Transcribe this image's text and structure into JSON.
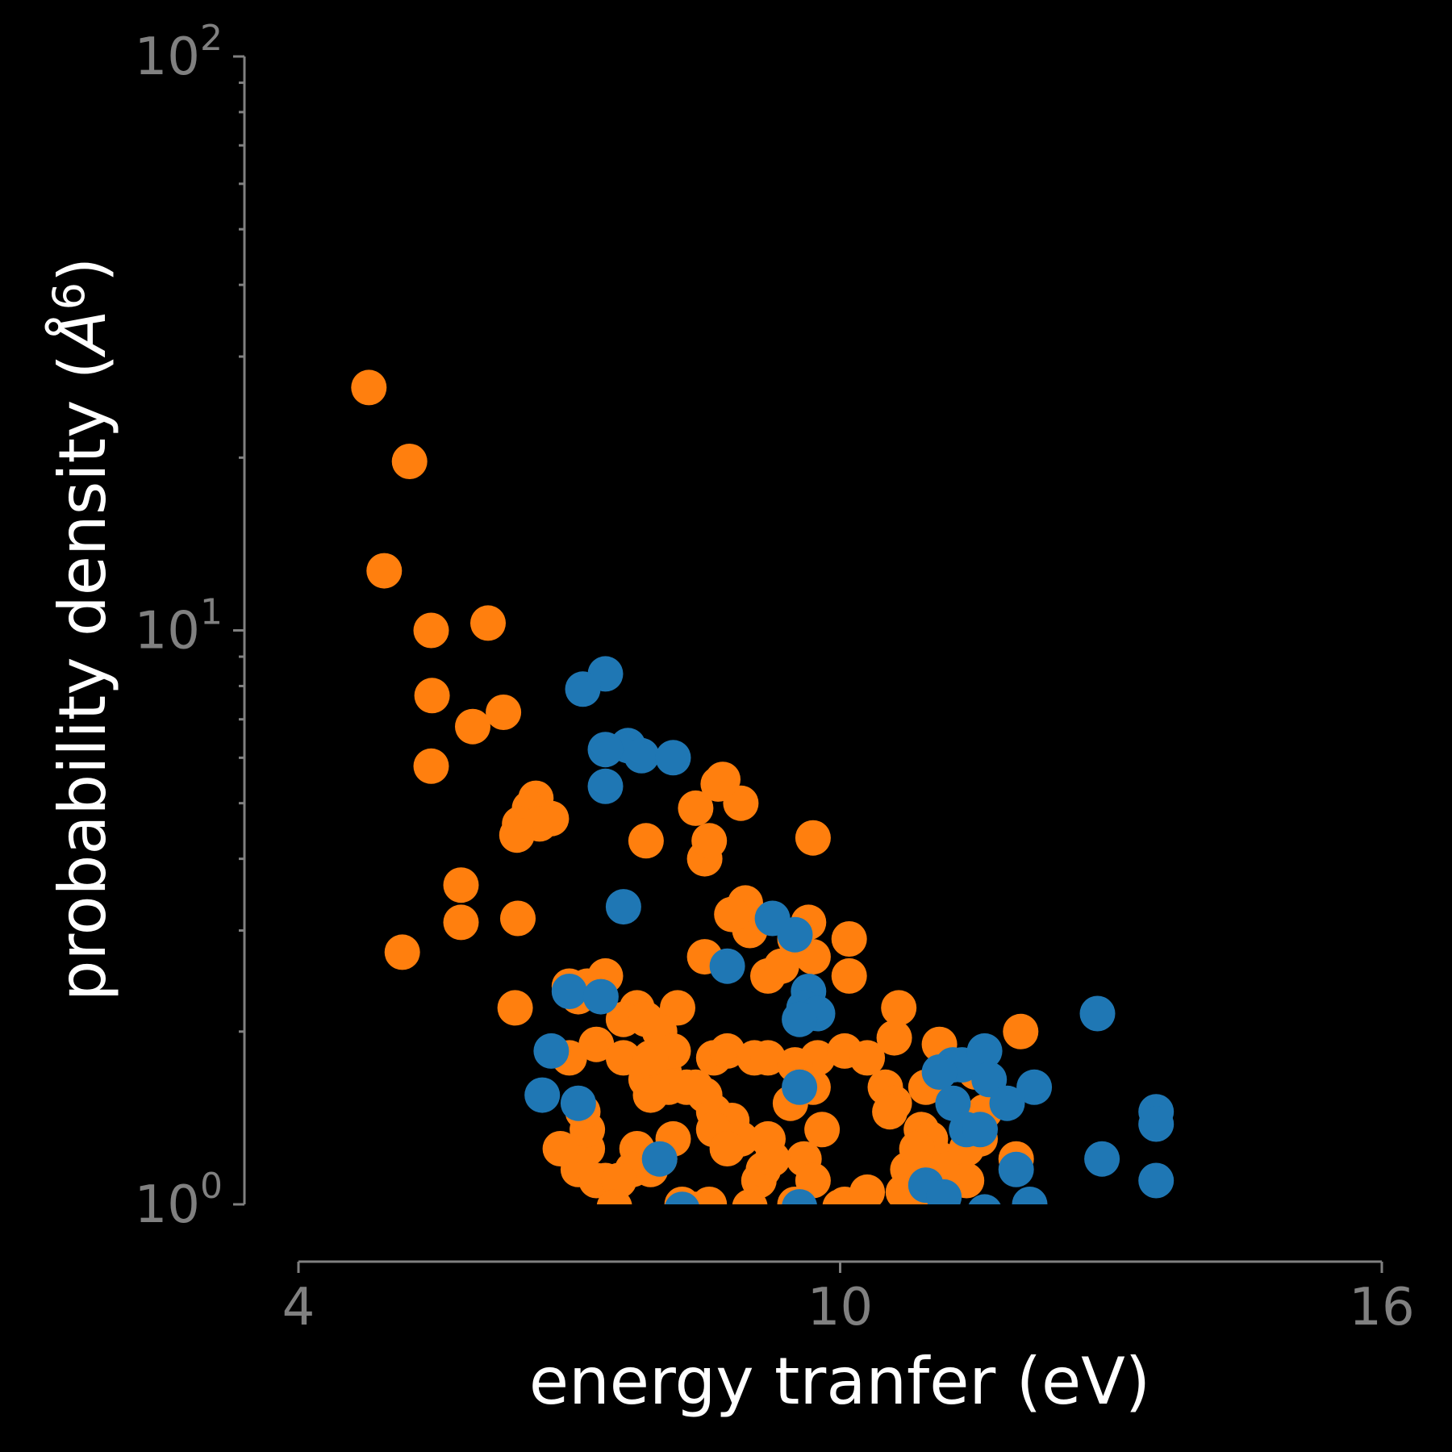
{
  "chart_data": {
    "type": "scatter",
    "title": "",
    "xlabel": "energy tranfer (eV)",
    "ylabel": "probability density (Å⁶)",
    "ylabel_parts": {
      "before": "probability density (",
      "unit": "Å",
      "exp": "6",
      "after": ")"
    },
    "xlim": [
      4,
      16
    ],
    "xticks": [
      {
        "value": 4,
        "label": "4"
      },
      {
        "value": 10,
        "label": "10"
      },
      {
        "value": 16,
        "label": "16"
      }
    ],
    "ylim": [
      1,
      100
    ],
    "yscale": "log",
    "yticks": [
      {
        "value": 1,
        "base": "10",
        "exp": "0"
      },
      {
        "value": 10,
        "base": "10",
        "exp": "1"
      },
      {
        "value": 100,
        "base": "10",
        "exp": "2"
      }
    ],
    "grid": false,
    "legend": "none",
    "series": [
      {
        "color": "#ff7f0e",
        "points": [
          [
            4.78,
            26.5
          ],
          [
            5.23,
            19.7
          ],
          [
            4.95,
            12.7
          ],
          [
            5.47,
            10.0
          ],
          [
            6.1,
            10.3
          ],
          [
            5.48,
            7.7
          ],
          [
            6.27,
            7.2
          ],
          [
            5.93,
            6.8
          ],
          [
            5.47,
            5.8
          ],
          [
            6.63,
            5.1
          ],
          [
            6.56,
            4.9
          ],
          [
            6.8,
            4.7
          ],
          [
            6.45,
            4.6
          ],
          [
            6.67,
            4.6
          ],
          [
            6.42,
            4.4
          ],
          [
            5.8,
            3.6
          ],
          [
            5.8,
            3.1
          ],
          [
            6.43,
            3.15
          ],
          [
            5.15,
            2.75
          ],
          [
            6.4,
            2.2
          ],
          [
            7.0,
            2.4
          ],
          [
            7.2,
            2.4
          ],
          [
            7.1,
            2.3
          ],
          [
            7.4,
            2.5
          ],
          [
            7.75,
            2.2
          ],
          [
            7.6,
            2.1
          ],
          [
            8.2,
            2.2
          ],
          [
            7.85,
            2.1
          ],
          [
            8.0,
            2.0
          ],
          [
            7.3,
            1.9
          ],
          [
            7.6,
            1.8
          ],
          [
            8.0,
            1.75
          ],
          [
            8.05,
            1.7
          ],
          [
            7.85,
            1.65
          ],
          [
            8.1,
            1.6
          ],
          [
            7.9,
            1.55
          ],
          [
            8.3,
            1.6
          ],
          [
            8.5,
            1.55
          ],
          [
            8.6,
            1.8
          ],
          [
            8.75,
            1.85
          ],
          [
            9.05,
            1.8
          ],
          [
            9.2,
            1.8
          ],
          [
            8.6,
            1.45
          ],
          [
            8.8,
            1.4
          ],
          [
            8.6,
            1.35
          ],
          [
            8.9,
            1.3
          ],
          [
            8.75,
            1.25
          ],
          [
            9.2,
            1.3
          ],
          [
            7.75,
            1.25
          ],
          [
            8.0,
            1.2
          ],
          [
            7.9,
            1.15
          ],
          [
            8.15,
            1.3
          ],
          [
            7.7,
            1.15
          ],
          [
            7.4,
            1.1
          ],
          [
            7.1,
            1.15
          ],
          [
            7.3,
            1.1
          ],
          [
            7.2,
            1.25
          ],
          [
            7.2,
            1.35
          ],
          [
            7.15,
            1.45
          ],
          [
            7.55,
            1.1
          ],
          [
            9.1,
            1.1
          ],
          [
            9.15,
            1.15
          ],
          [
            9.6,
            1.2
          ],
          [
            9.7,
            1.1
          ],
          [
            9.8,
            1.35
          ],
          [
            9.7,
            1.6
          ],
          [
            9.75,
            1.8
          ],
          [
            9.5,
            1.75
          ],
          [
            10.05,
            1.85
          ],
          [
            10.3,
            1.8
          ],
          [
            10.5,
            1.6
          ],
          [
            10.6,
            1.5
          ],
          [
            10.95,
            1.6
          ],
          [
            10.55,
            1.45
          ],
          [
            10.9,
            1.35
          ],
          [
            11.0,
            1.3
          ],
          [
            11.1,
            1.2
          ],
          [
            11.2,
            1.15
          ],
          [
            10.75,
            1.15
          ],
          [
            10.7,
            1.05
          ],
          [
            10.3,
            1.05
          ],
          [
            10.05,
            1.0
          ],
          [
            11.5,
            1.7
          ],
          [
            11.6,
            1.45
          ],
          [
            11.55,
            1.3
          ],
          [
            11.4,
            1.25
          ],
          [
            11.4,
            1.1
          ],
          [
            11.95,
            1.2
          ],
          [
            12.0,
            2.0
          ],
          [
            11.1,
            1.9
          ],
          [
            10.1,
            2.5
          ],
          [
            10.65,
            2.2
          ],
          [
            10.1,
            2.9
          ],
          [
            9.7,
            2.7
          ],
          [
            9.65,
            3.1
          ],
          [
            9.5,
            2.9
          ],
          [
            9.2,
            2.5
          ],
          [
            9.35,
            2.6
          ],
          [
            9.0,
            3.0
          ],
          [
            8.95,
            3.35
          ],
          [
            8.8,
            3.2
          ],
          [
            8.5,
            2.7
          ],
          [
            8.5,
            4.0
          ],
          [
            8.55,
            4.3
          ],
          [
            8.4,
            4.9
          ],
          [
            8.65,
            5.4
          ],
          [
            8.9,
            5.0
          ],
          [
            8.7,
            5.5
          ],
          [
            7.85,
            4.3
          ],
          [
            9.7,
            4.35
          ],
          [
            8.25,
            1.0
          ],
          [
            8.55,
            1.0
          ],
          [
            9.0,
            0.99
          ],
          [
            9.5,
            1.0
          ],
          [
            10.0,
            0.99
          ],
          [
            8.4,
            0.98
          ],
          [
            7.5,
            0.99
          ],
          [
            9.45,
            1.5
          ],
          [
            9.25,
            1.2
          ],
          [
            8.15,
            1.85
          ],
          [
            7.9,
            1.8
          ],
          [
            7.0,
            1.8
          ],
          [
            6.9,
            1.25
          ],
          [
            8.4,
            1.6
          ],
          [
            10.6,
            1.95
          ],
          [
            10.85,
            1.25
          ],
          [
            10.95,
            1.05
          ]
        ]
      },
      {
        "color": "#1f77b4",
        "points": [
          [
            7.4,
            8.4
          ],
          [
            7.15,
            7.9
          ],
          [
            7.65,
            6.3
          ],
          [
            7.4,
            6.2
          ],
          [
            7.8,
            6.05
          ],
          [
            8.15,
            6.0
          ],
          [
            7.4,
            5.35
          ],
          [
            7.6,
            3.3
          ],
          [
            9.25,
            3.15
          ],
          [
            9.5,
            2.95
          ],
          [
            8.75,
            2.6
          ],
          [
            9.65,
            2.35
          ],
          [
            9.6,
            2.2
          ],
          [
            9.75,
            2.15
          ],
          [
            9.55,
            2.1
          ],
          [
            7.0,
            2.35
          ],
          [
            7.35,
            2.3
          ],
          [
            6.8,
            1.85
          ],
          [
            6.7,
            1.55
          ],
          [
            7.1,
            1.5
          ],
          [
            9.55,
            1.6
          ],
          [
            11.25,
            1.75
          ],
          [
            11.35,
            1.75
          ],
          [
            11.1,
            1.7
          ],
          [
            11.6,
            1.85
          ],
          [
            11.65,
            1.65
          ],
          [
            12.15,
            1.6
          ],
          [
            11.25,
            1.5
          ],
          [
            11.85,
            1.5
          ],
          [
            11.4,
            1.35
          ],
          [
            11.55,
            1.35
          ],
          [
            12.85,
            2.15
          ],
          [
            13.5,
            1.45
          ],
          [
            13.5,
            1.38
          ],
          [
            12.9,
            1.2
          ],
          [
            11.95,
            1.15
          ],
          [
            13.5,
            1.1
          ],
          [
            10.95,
            1.08
          ],
          [
            11.15,
            1.03
          ],
          [
            12.1,
            1.0
          ],
          [
            9.55,
            0.99
          ],
          [
            8.0,
            1.2
          ],
          [
            8.25,
            0.98
          ],
          [
            11.6,
            0.97
          ]
        ]
      }
    ]
  }
}
